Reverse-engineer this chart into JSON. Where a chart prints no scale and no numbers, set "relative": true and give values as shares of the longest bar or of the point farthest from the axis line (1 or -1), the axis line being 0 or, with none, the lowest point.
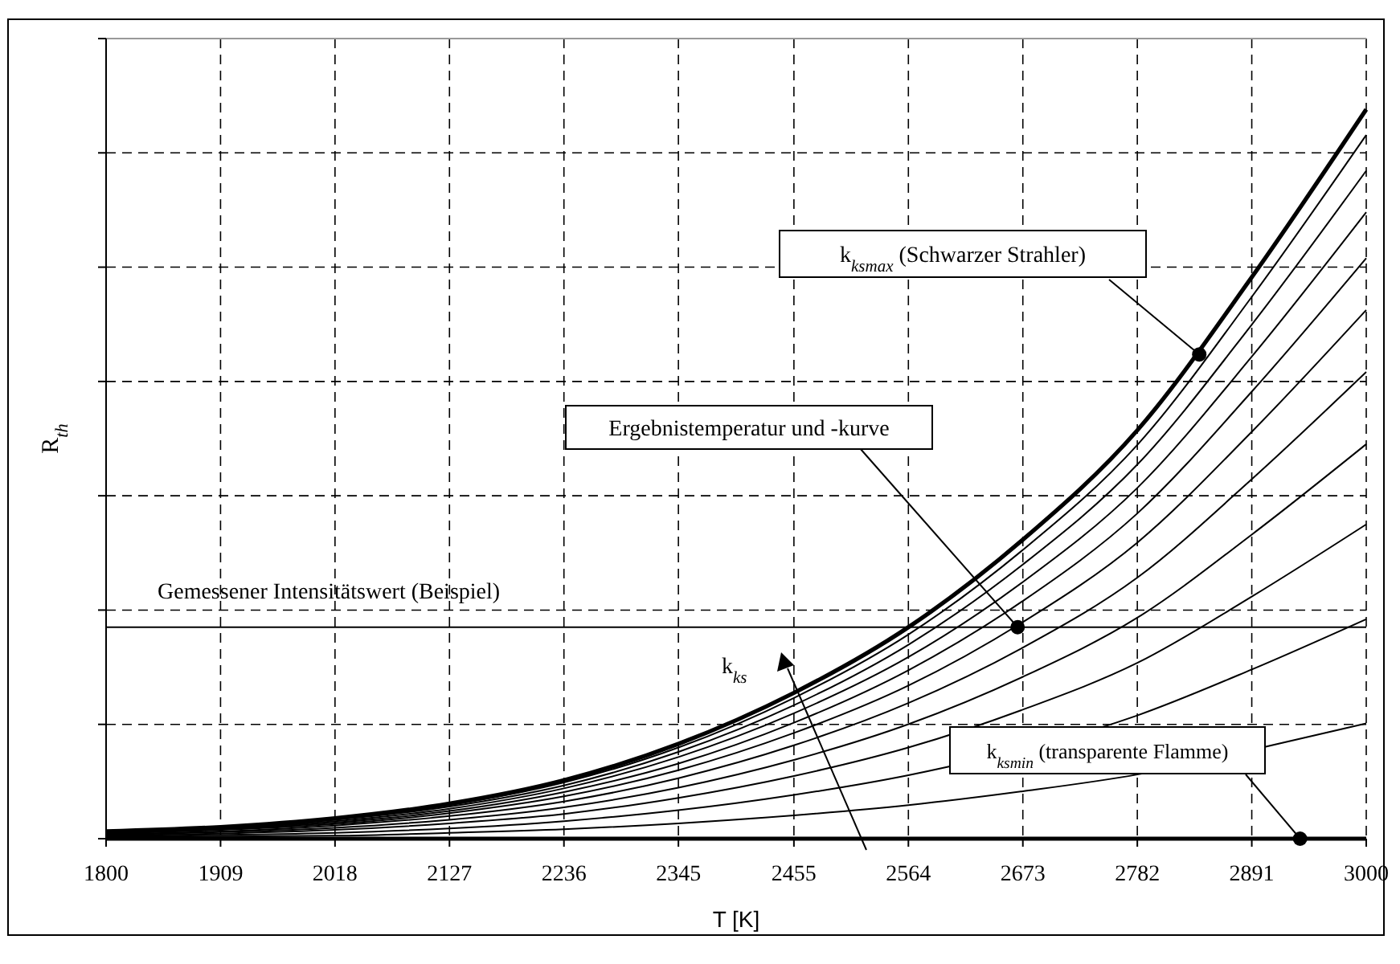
{
  "chart_data": {
    "type": "line",
    "relative": true,
    "xlabel": "T [K]",
    "ylabel": "R$_{th}$",
    "x": [
      1800,
      1909,
      2018,
      2127,
      2236,
      2345,
      2455,
      2564,
      2673,
      2782,
      2891,
      3000
    ],
    "xlim": [
      1800,
      3000
    ],
    "xticks": [
      1800,
      1909,
      2018,
      2127,
      2236,
      2345,
      2455,
      2564,
      2673,
      2782,
      2891,
      3000
    ],
    "grid": true,
    "marker": "none",
    "line_style": "solid",
    "series": [
      {
        "color": "#000000",
        "values": [
          0.01,
          0.016,
          0.028,
          0.048,
          0.08,
          0.13,
          0.2,
          0.29,
          0.41,
          0.56,
          0.77,
          1
        ]
      },
      {
        "color": "#000000",
        "values": [
          0.01,
          0.015,
          0.027,
          0.046,
          0.077,
          0.125,
          0.193,
          0.28,
          0.396,
          0.54,
          0.743,
          0.965
        ]
      },
      {
        "color": "#000000",
        "values": [
          0.009,
          0.015,
          0.026,
          0.044,
          0.073,
          0.119,
          0.183,
          0.266,
          0.376,
          0.513,
          0.705,
          0.916
        ]
      },
      {
        "color": "#000000",
        "values": [
          0.009,
          0.014,
          0.024,
          0.041,
          0.069,
          0.112,
          0.172,
          0.249,
          0.352,
          0.481,
          0.661,
          0.859
        ]
      },
      {
        "color": "#000000",
        "values": [
          0.008,
          0.013,
          0.022,
          0.038,
          0.064,
          0.103,
          0.159,
          0.231,
          0.326,
          0.446,
          0.613,
          0.796
        ]
      },
      {
        "color": "#000000",
        "values": [
          0.007,
          0.012,
          0.02,
          0.035,
          0.058,
          0.094,
          0.145,
          0.21,
          0.297,
          0.406,
          0.558,
          0.725
        ]
      },
      {
        "color": "#000000",
        "values": [
          0.006,
          0.01,
          0.018,
          0.031,
          0.051,
          0.083,
          0.128,
          0.186,
          0.262,
          0.358,
          0.493,
          0.64
        ]
      },
      {
        "color": "#000000",
        "values": [
          0.005,
          0.009,
          0.015,
          0.026,
          0.043,
          0.07,
          0.108,
          0.157,
          0.222,
          0.303,
          0.417,
          0.541
        ]
      },
      {
        "color": "#000000",
        "values": [
          0.004,
          0.007,
          0.012,
          0.021,
          0.034,
          0.056,
          0.086,
          0.125,
          0.177,
          0.241,
          0.332,
          0.431
        ]
      },
      {
        "color": "#000000",
        "x": [
          1800,
          1909,
          2018,
          2127,
          2236,
          2345,
          2455,
          2564,
          2600,
          2782,
          2891,
          3000
        ],
        "values": [
          0.003,
          0.005,
          0.008,
          0.014,
          0.024,
          0.039,
          0.06,
          0.087,
          0.098,
          0.169,
          0.232,
          0.301
        ]
      },
      {
        "color": "#000000",
        "x": [
          1800,
          1909,
          2018,
          2127,
          2236,
          2345,
          2455,
          2564,
          2673,
          2782,
          2910,
          3000
        ],
        "values": [
          0.002,
          0.003,
          0.004,
          0.008,
          0.013,
          0.021,
          0.032,
          0.046,
          0.065,
          0.088,
          0.128,
          0.158
        ]
      },
      {
        "color": "#000000",
        "values": [
          0,
          0,
          0,
          0,
          0,
          0,
          0,
          0,
          0,
          0,
          0,
          0
        ]
      }
    ],
    "ref_lines": [
      {
        "axis": "y",
        "value": 0.29,
        "label": "Gemessener Intensitätswert (Beispiel)",
        "color": "#000000"
      }
    ],
    "annotations": [
      {
        "text": "k$_{ksmax}$ (Schwarzer Strahler)",
        "x": 2841,
        "y": 0.664
      },
      {
        "text": "Ergebnistemperatur und -kurve",
        "x": 2668,
        "y": 0.29
      },
      {
        "text": "k$_{ksmin}$ (transparente Flamme)",
        "x": 2937,
        "y": 0
      },
      "k$_{ks}$"
    ]
  }
}
